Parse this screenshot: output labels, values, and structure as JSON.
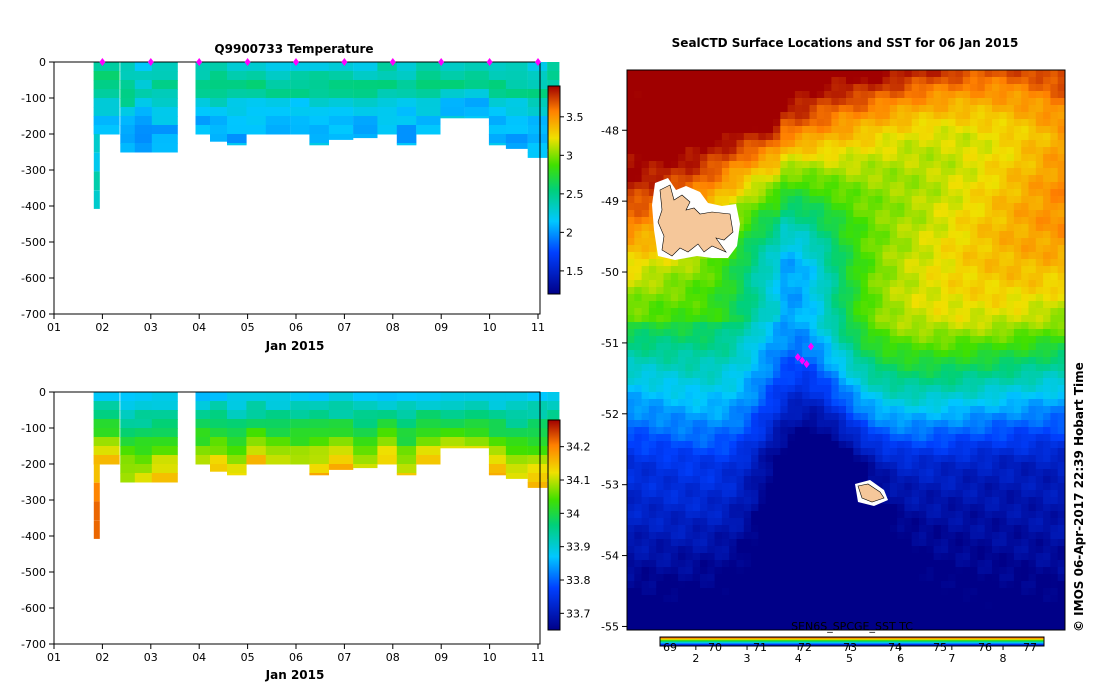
{
  "chart_data": [
    {
      "type": "heatmap",
      "title": "Q9900733  Temperature",
      "xlabel": "Jan 2015",
      "x_ticks": [
        "01",
        "02",
        "03",
        "04",
        "05",
        "06",
        "07",
        "08",
        "09",
        "10",
        "11"
      ],
      "y_ticks": [
        "0",
        "-100",
        "-200",
        "-300",
        "-400",
        "-500",
        "-600",
        "-700"
      ],
      "ylim": [
        -700,
        0
      ],
      "colorbar_ticks": [
        "1.5",
        "2",
        "2.5",
        "3",
        "3.5"
      ],
      "colorbar_range": [
        1.2,
        3.9
      ],
      "profiles": [
        {
          "day": 1.45,
          "depth": 200,
          "value": 2.4
        },
        {
          "day": 2.0,
          "depth": 250,
          "value": 2.3
        },
        {
          "day": 2.3,
          "depth": 250,
          "value": 2.2
        },
        {
          "day": 2.65,
          "depth": 250,
          "value": 2.3
        },
        {
          "day": 3.55,
          "depth": 200,
          "value": 2.3
        },
        {
          "day": 3.85,
          "depth": 220,
          "value": 2.35
        },
        {
          "day": 4.2,
          "depth": 230,
          "value": 2.3
        },
        {
          "day": 4.6,
          "depth": 200,
          "value": 2.35
        },
        {
          "day": 5.0,
          "depth": 200,
          "value": 2.3
        },
        {
          "day": 5.5,
          "depth": 200,
          "value": 2.3
        },
        {
          "day": 5.9,
          "depth": 230,
          "value": 2.3
        },
        {
          "day": 6.3,
          "depth": 215,
          "value": 2.35
        },
        {
          "day": 6.8,
          "depth": 210,
          "value": 2.3
        },
        {
          "day": 7.3,
          "depth": 200,
          "value": 2.35
        },
        {
          "day": 7.7,
          "depth": 230,
          "value": 2.3
        },
        {
          "day": 8.1,
          "depth": 200,
          "value": 2.35
        },
        {
          "day": 8.6,
          "depth": 155,
          "value": 2.35
        },
        {
          "day": 9.1,
          "depth": 155,
          "value": 2.3
        },
        {
          "day": 9.6,
          "depth": 230,
          "value": 2.35
        },
        {
          "day": 9.95,
          "depth": 240,
          "value": 2.3
        },
        {
          "day": 10.4,
          "depth": 265,
          "value": 2.3
        },
        {
          "day": 10.8,
          "depth": 240,
          "value": 2.35
        }
      ]
    },
    {
      "type": "heatmap",
      "title": "",
      "xlabel": "Jan 2015",
      "x_ticks": [
        "01",
        "02",
        "03",
        "04",
        "05",
        "06",
        "07",
        "08",
        "09",
        "10",
        "11"
      ],
      "y_ticks": [
        "0",
        "-100",
        "-200",
        "-300",
        "-400",
        "-500",
        "-600",
        "-700"
      ],
      "ylim": [
        -700,
        0
      ],
      "colorbar_ticks": [
        "33.7",
        "33.8",
        "33.9",
        "34",
        "34.1",
        "34.2"
      ],
      "colorbar_range": [
        33.65,
        34.28
      ],
      "profiles": [
        {
          "day": 1.45,
          "depth": 200,
          "value": 34.1
        },
        {
          "day": 2.0,
          "depth": 250,
          "value": 34.05
        },
        {
          "day": 2.3,
          "depth": 250,
          "value": 34.05
        },
        {
          "day": 2.65,
          "depth": 250,
          "value": 34.1
        },
        {
          "day": 3.55,
          "depth": 200,
          "value": 34.05
        },
        {
          "day": 3.85,
          "depth": 220,
          "value": 34.1
        },
        {
          "day": 4.2,
          "depth": 230,
          "value": 34.05
        },
        {
          "day": 4.6,
          "depth": 200,
          "value": 34.1
        },
        {
          "day": 5.0,
          "depth": 200,
          "value": 34.05
        },
        {
          "day": 5.5,
          "depth": 200,
          "value": 34.05
        },
        {
          "day": 5.9,
          "depth": 230,
          "value": 34.1
        },
        {
          "day": 6.3,
          "depth": 215,
          "value": 34.1
        },
        {
          "day": 6.8,
          "depth": 210,
          "value": 34.05
        },
        {
          "day": 7.3,
          "depth": 200,
          "value": 34.1
        },
        {
          "day": 7.7,
          "depth": 230,
          "value": 34.05
        },
        {
          "day": 8.1,
          "depth": 200,
          "value": 34.1
        },
        {
          "day": 8.6,
          "depth": 155,
          "value": 34.05
        },
        {
          "day": 9.1,
          "depth": 155,
          "value": 34.05
        },
        {
          "day": 9.6,
          "depth": 230,
          "value": 34.1
        },
        {
          "day": 9.95,
          "depth": 240,
          "value": 34.05
        },
        {
          "day": 10.4,
          "depth": 265,
          "value": 34.1
        },
        {
          "day": 10.8,
          "depth": 240,
          "value": 34.1
        }
      ]
    },
    {
      "type": "heatmap",
      "title": "SealCTD Surface Locations and SST for 06 Jan 2015",
      "y_ticks": [
        "-48",
        "-49",
        "-50",
        "-51",
        "-52",
        "-53",
        "-54",
        "-55"
      ],
      "lat_range": [
        -55.05,
        -47.15
      ],
      "colorbar_label": "SEN6S_SPCGE_SST TC",
      "colorbar_ticks_top": [
        "69",
        "70",
        "71",
        "72",
        "73",
        "74",
        "75",
        "76",
        "77"
      ],
      "colorbar_ticks_bottom": [
        "2",
        "3",
        "4",
        "5",
        "6",
        "7",
        "8"
      ],
      "colorbar_range": [
        1.3,
        8.8
      ],
      "seal_positions": [
        {
          "lat": -51.2,
          "lon_frac": 0.39
        },
        {
          "lat": -51.25,
          "lon_frac": 0.4
        },
        {
          "lat": -51.3,
          "lon_frac": 0.41
        },
        {
          "lat": -51.05,
          "lon_frac": 0.42
        }
      ]
    }
  ],
  "credit": "© IMOS 06-Apr-2017 22:39 Hobart Time",
  "colors": {
    "land": "#f5c79a",
    "marker": "#ff00ff",
    "axis": "#000000"
  }
}
